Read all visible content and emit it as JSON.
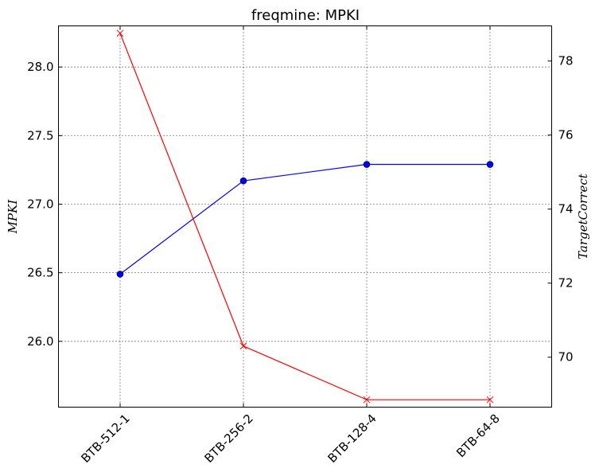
{
  "chart_data": {
    "type": "line",
    "title": "freqmine: MPKI",
    "categories": [
      "BTB-512-1",
      "BTB-256-2",
      "BTB-128-4",
      "BTB-64-8"
    ],
    "ylabel": "$MPKI$",
    "ylabel_display": "MPKI",
    "y2label": "$TargetCorrect$",
    "y2label_display": "TargetCorrect",
    "ylim": [
      25.52,
      28.3
    ],
    "y2lim": [
      68.65,
      78.95
    ],
    "yticks": [
      "26.0",
      "26.5",
      "27.0",
      "27.5",
      "28.0"
    ],
    "y2ticks": [
      "70",
      "72",
      "74",
      "76",
      "78"
    ],
    "grid": true,
    "series": [
      {
        "axis": "left",
        "color": "#0000ff",
        "marker": "circle",
        "values": [
          26.49,
          27.17,
          27.29,
          27.29
        ]
      },
      {
        "axis": "right",
        "color": "#ff0000",
        "marker": "x",
        "values": [
          78.75,
          70.3,
          68.85,
          68.85
        ]
      }
    ]
  }
}
